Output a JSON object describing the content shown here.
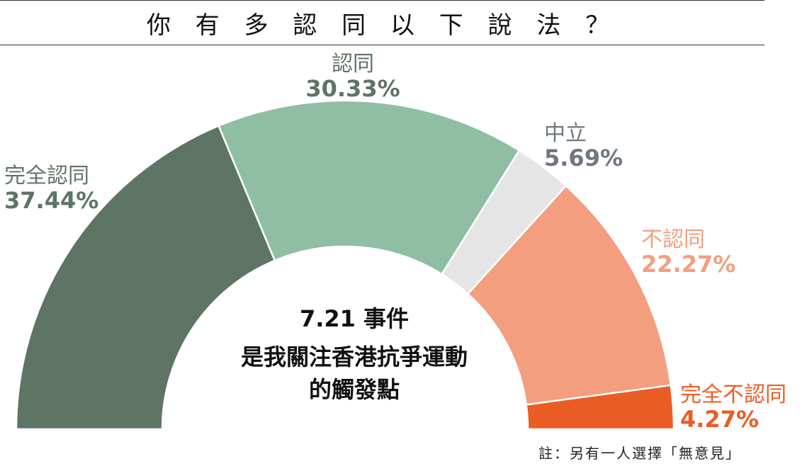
{
  "title": "你 有 多 認 同 以 下 說 法 ？",
  "center_text": [
    "7.21 事件",
    "是我關注香港抗爭運動",
    "的觸發點"
  ],
  "footnote": "註：另有一人選擇「無意見」",
  "chart_data": {
    "type": "pie",
    "variant": "semicircle-donut",
    "categories": [
      "完全認同",
      "認同",
      "中立",
      "不認同",
      "完全不認同"
    ],
    "values": [
      37.44,
      30.33,
      5.69,
      22.27,
      4.27
    ],
    "value_labels": [
      "37.44%",
      "30.33%",
      "5.69%",
      "22.27%",
      "4.27%"
    ],
    "colors": [
      "#5e7465",
      "#8fbea4",
      "#e5e5e5",
      "#f39e7f",
      "#e95d24"
    ],
    "label_colors": [
      "#5e7465",
      "#5e7465",
      "#6f7780",
      "#f39e7f",
      "#e95d24"
    ]
  }
}
